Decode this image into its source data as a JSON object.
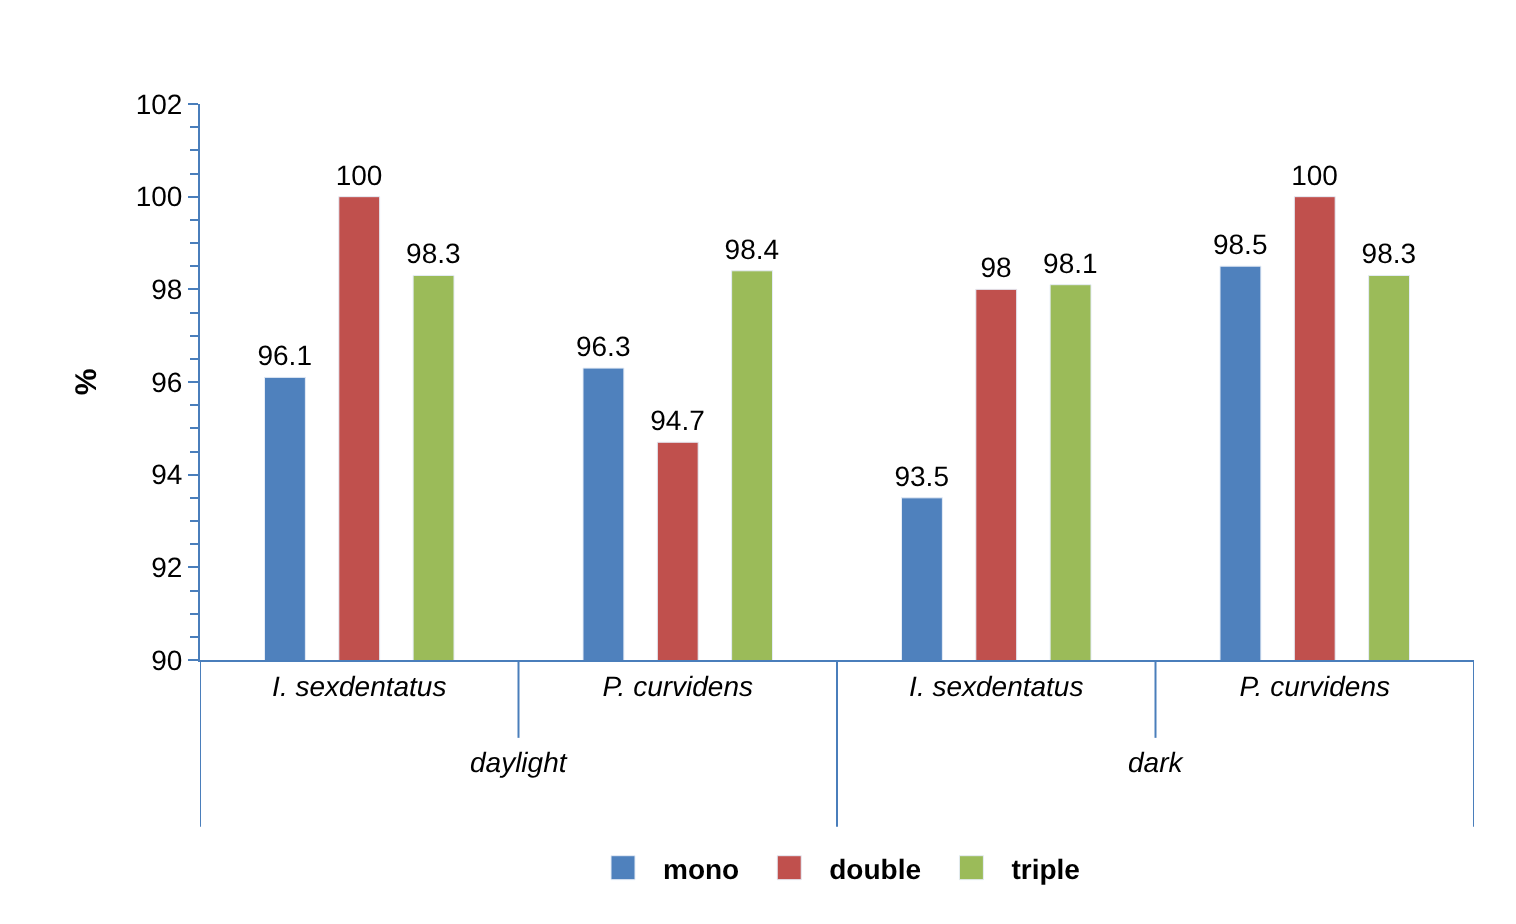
{
  "chart_data": {
    "type": "bar",
    "ylabel": "%",
    "categories": [
      "I. sexdentatus",
      "P. curvidens",
      "I. sexdentatus",
      "P. curvidens"
    ],
    "annotations": [
      "daylight",
      "dark"
    ],
    "series": [
      {
        "name": "mono",
        "color": "#4f81bd",
        "values": [
          96.1,
          96.3,
          93.5,
          98.5
        ]
      },
      {
        "name": "double",
        "color": "#c0504d",
        "values": [
          100,
          94.7,
          98,
          100
        ]
      },
      {
        "name": "triple",
        "color": "#9bbb59",
        "values": [
          98.3,
          98.4,
          98.1,
          98.3
        ]
      }
    ],
    "ylim": [
      90,
      102
    ],
    "yticks": [
      90,
      92,
      94,
      96,
      98,
      100,
      102
    ],
    "data_labels": true,
    "legend": "bottom"
  }
}
